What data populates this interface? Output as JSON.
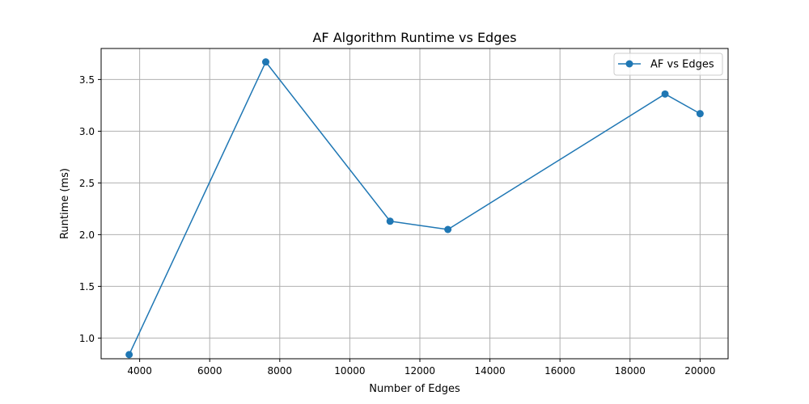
{
  "chart_data": {
    "type": "line",
    "title": "AF Algorithm Runtime vs Edges",
    "xlabel": "Number of Edges",
    "ylabel": "Runtime (ms)",
    "xlim": [
      2900,
      20800
    ],
    "ylim": [
      0.8,
      3.8
    ],
    "x_ticks": [
      4000,
      6000,
      8000,
      10000,
      12000,
      14000,
      16000,
      18000,
      20000
    ],
    "y_ticks": [
      1.0,
      1.5,
      2.0,
      2.5,
      3.0,
      3.5
    ],
    "grid": true,
    "legend_position": "top-right",
    "series": [
      {
        "name": "AF vs Edges",
        "color": "#1f77b4",
        "marker": "circle",
        "x": [
          3700,
          7600,
          11150,
          12800,
          19000,
          20000
        ],
        "y": [
          0.84,
          3.67,
          2.13,
          2.05,
          3.36,
          3.17
        ]
      }
    ]
  }
}
